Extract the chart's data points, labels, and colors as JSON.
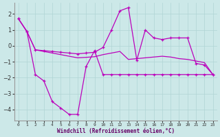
{
  "xlabel": "Windchill (Refroidissement éolien,°C)",
  "background_color": "#cce8e8",
  "grid_color": "#b0d4d4",
  "line_color": "#bb00bb",
  "xlim": [
    -0.5,
    23.5
  ],
  "ylim": [
    -4.7,
    2.7
  ],
  "yticks": [
    -4,
    -3,
    -2,
    -1,
    0,
    1,
    2
  ],
  "xticks": [
    0,
    1,
    2,
    3,
    4,
    5,
    6,
    7,
    8,
    9,
    10,
    11,
    12,
    13,
    14,
    15,
    16,
    17,
    18,
    19,
    20,
    21,
    22,
    23
  ],
  "s1_x": [
    0,
    1,
    2,
    3,
    4,
    5,
    6,
    7,
    8,
    9,
    10,
    11,
    12,
    13,
    14,
    15,
    16,
    17,
    18,
    19,
    20,
    21,
    22,
    23
  ],
  "s1_y": [
    1.7,
    0.9,
    -0.25,
    -0.3,
    -0.35,
    -0.4,
    -0.45,
    -0.5,
    -0.45,
    -0.4,
    -0.1,
    1.0,
    2.2,
    2.4,
    -0.9,
    1.0,
    0.5,
    0.4,
    0.5,
    0.5,
    0.5,
    -1.1,
    -1.2,
    -1.8
  ],
  "s2_x": [
    0,
    1,
    2,
    3,
    4,
    5,
    6,
    7,
    8,
    9,
    10,
    11,
    12,
    13,
    14,
    15,
    16,
    17,
    18,
    19,
    20,
    21,
    22,
    23
  ],
  "s2_y": [
    1.7,
    0.9,
    -0.25,
    -0.35,
    -0.45,
    -0.55,
    -0.65,
    -0.75,
    -0.72,
    -0.68,
    -0.55,
    -0.45,
    -0.35,
    -0.85,
    -0.8,
    -0.75,
    -0.7,
    -0.65,
    -0.7,
    -0.8,
    -0.85,
    -0.95,
    -1.05,
    -1.8
  ],
  "s3_x": [
    0,
    1,
    2,
    3,
    4,
    5,
    6,
    7,
    8,
    9,
    10,
    11,
    12,
    13,
    14,
    15,
    16,
    17,
    18,
    19,
    20,
    21,
    22,
    23
  ],
  "s3_y": [
    1.7,
    0.9,
    -1.8,
    -2.2,
    -3.5,
    -3.9,
    -4.3,
    -4.3,
    -1.3,
    -0.3,
    -1.8,
    -1.8,
    -1.8,
    -1.8,
    -1.8,
    -1.8,
    -1.8,
    -1.8,
    -1.8,
    -1.8,
    -1.8,
    -1.8,
    -1.8,
    -1.8
  ]
}
